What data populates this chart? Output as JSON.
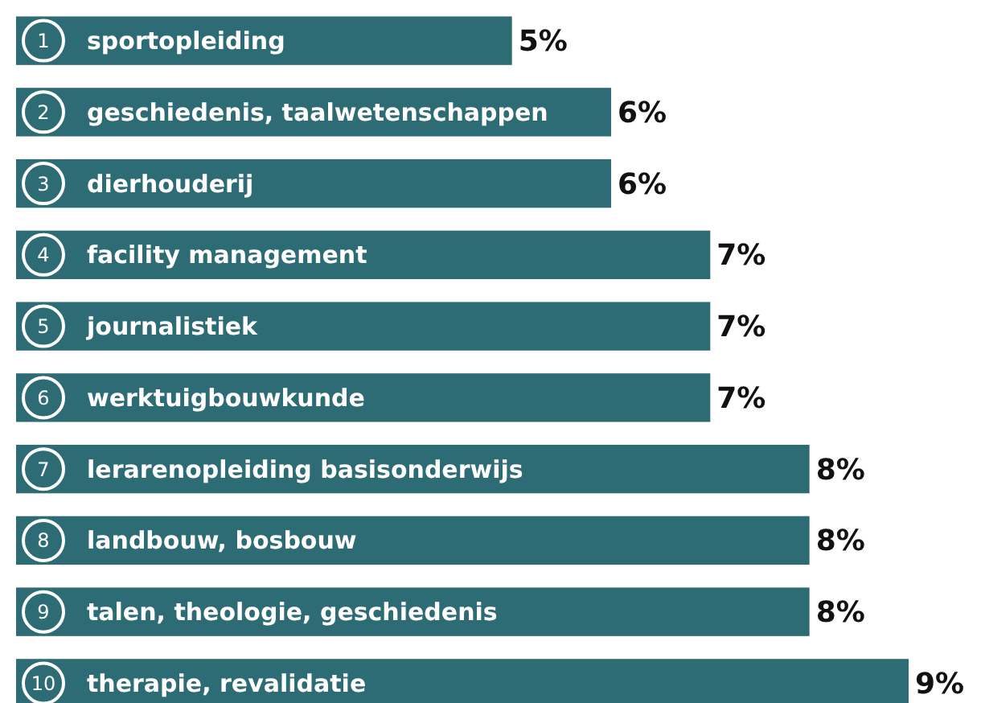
{
  "chart_data": {
    "type": "bar",
    "orientation": "horizontal",
    "categories": [
      "sportopleiding",
      "geschiedenis, taalwetenschappen",
      "dierhouderij",
      "facility management",
      "journalistiek",
      "werktuigbouwkunde",
      "lerarenopleiding basisonderwijs",
      "landbouw, bosbouw",
      "talen, theologie, geschiedenis",
      "therapie, revalidatie"
    ],
    "values": [
      5,
      6,
      6,
      7,
      7,
      7,
      8,
      8,
      8,
      9
    ],
    "value_labels": [
      "5%",
      "6%",
      "6%",
      "7%",
      "7%",
      "7%",
      "8%",
      "8%",
      "8%",
      "9%"
    ],
    "color": "#2d6b75",
    "annotations": [
      {
        "text": "1",
        "y": "sportopleiding"
      },
      {
        "text": "2",
        "y": "geschiedenis, taalwetenschappen"
      },
      {
        "text": "3",
        "y": "dierhouderij"
      },
      {
        "text": "4",
        "y": "facility management"
      },
      {
        "text": "5",
        "y": "journalistiek"
      },
      {
        "text": "6",
        "y": "werktuigbouwkunde"
      },
      {
        "text": "7",
        "y": "lerarenopleiding basisonderwijs"
      },
      {
        "text": "8",
        "y": "landbouw, bosbouw"
      },
      {
        "text": "9",
        "y": "talen, theologie, geschiedenis"
      },
      {
        "text": "10",
        "y": "therapie, revalidatie"
      }
    ]
  }
}
